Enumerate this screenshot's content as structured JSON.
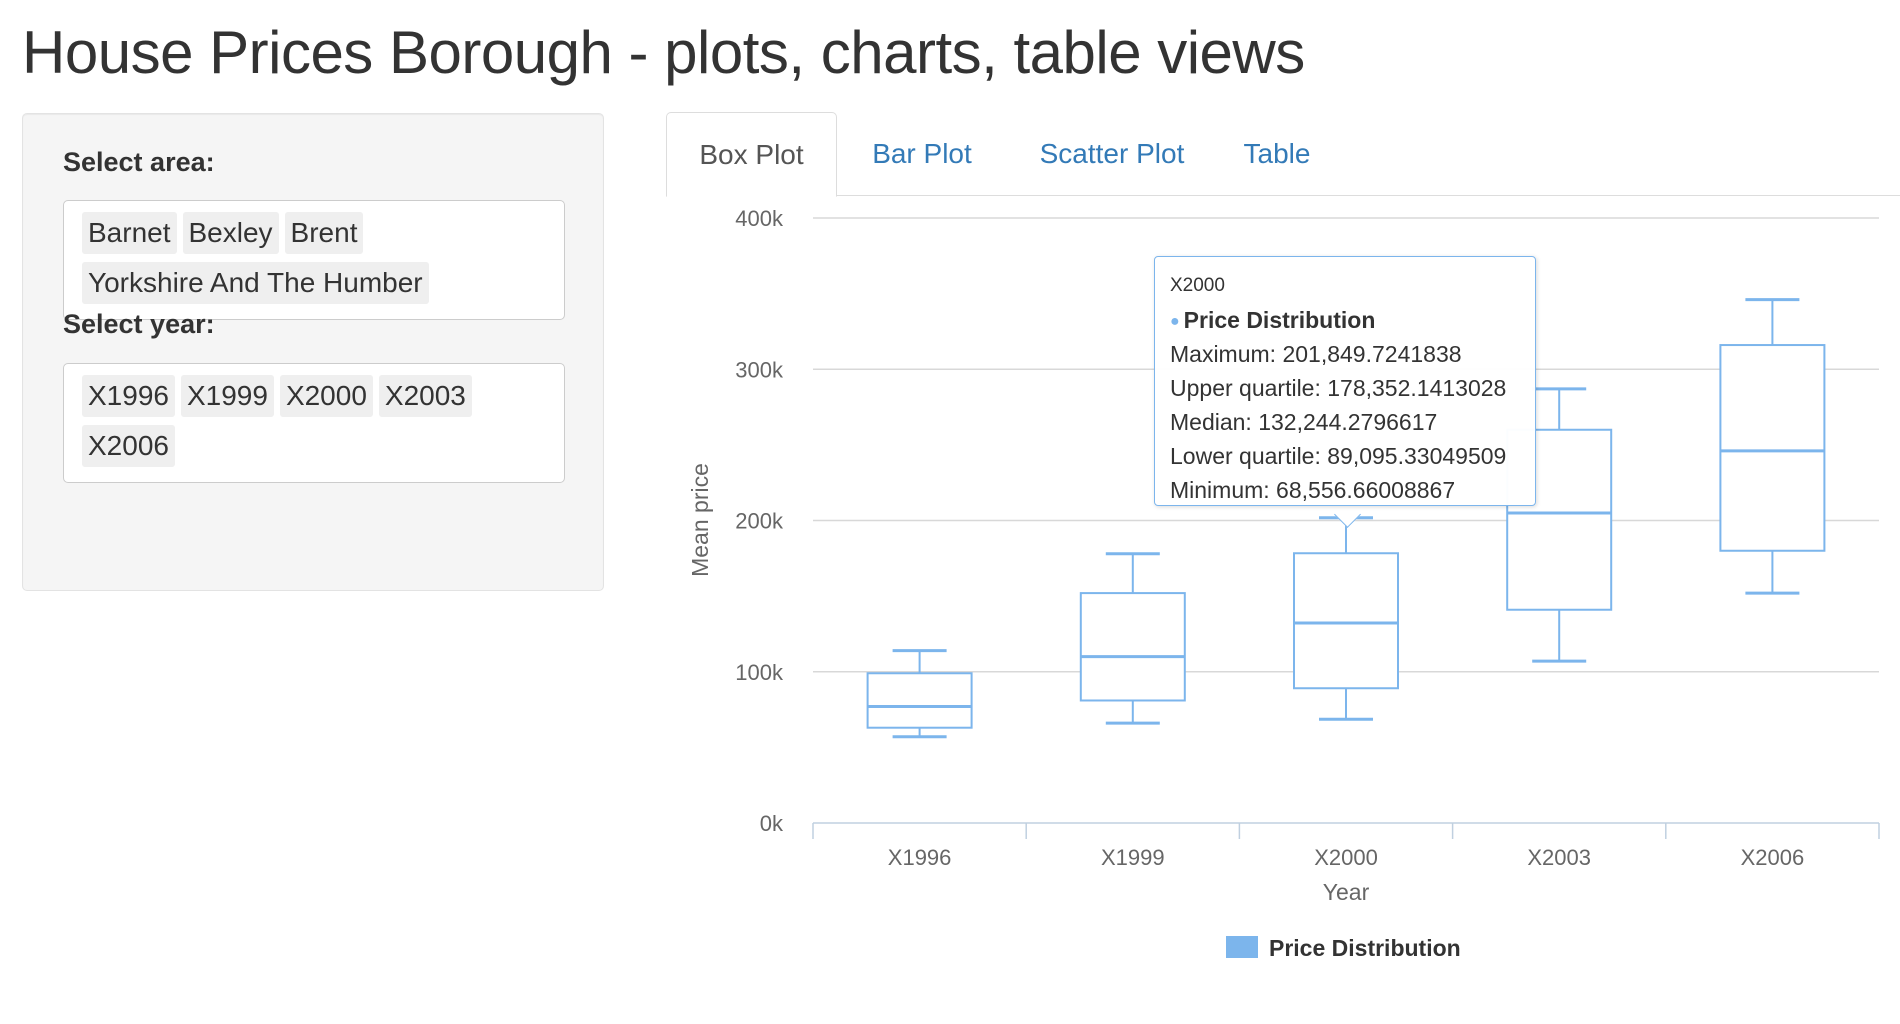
{
  "page": {
    "title": "House Prices Borough - plots, charts, table views"
  },
  "sidebar": {
    "area_label": "Select area:",
    "areas": [
      "Barnet",
      "Bexley",
      "Brent",
      "Yorkshire And The Humber"
    ],
    "year_label": "Select year:",
    "years": [
      "X1996",
      "X1999",
      "X2000",
      "X2003",
      "X2006"
    ]
  },
  "tabs": [
    {
      "label": "Box Plot",
      "active": true
    },
    {
      "label": "Bar Plot",
      "active": false
    },
    {
      "label": "Scatter Plot",
      "active": false
    },
    {
      "label": "Table",
      "active": false
    }
  ],
  "tooltip": {
    "category": "X2000",
    "series": "Price Distribution",
    "maximum": "Maximum: 201,849.7241838",
    "upper_quartile": "Upper quartile: 178,352.1413028",
    "median": "Median: 132,244.2796617",
    "lower_quartile": "Lower quartile: 89,095.33049509",
    "minimum": "Minimum: 68,556.66008867"
  },
  "chart_data": {
    "type": "box",
    "title": "",
    "xlabel": "Year",
    "ylabel": "Mean price",
    "ylim": [
      0,
      400000
    ],
    "yticks": [
      0,
      100000,
      200000,
      300000,
      400000
    ],
    "ytick_labels": [
      "0k",
      "100k",
      "200k",
      "300k",
      "400k"
    ],
    "grid": true,
    "legend_position": "bottom-center",
    "color": "#7cb5ec",
    "categories": [
      "X1996",
      "X1999",
      "X2000",
      "X2003",
      "X2006"
    ],
    "series": [
      {
        "name": "Price Distribution",
        "boxes": [
          {
            "min": 57000,
            "q1": 63000,
            "median": 77000,
            "q3": 99000,
            "max": 114000
          },
          {
            "min": 66000,
            "q1": 81000,
            "median": 110000,
            "q3": 152000,
            "max": 178000
          },
          {
            "min": 68556.66008867,
            "q1": 89095.33049509,
            "median": 132244.2796617,
            "q3": 178352.1413028,
            "max": 201849.7241838
          },
          {
            "min": 107000,
            "q1": 141000,
            "median": 205000,
            "q3": 260000,
            "max": 287000
          },
          {
            "min": 152000,
            "q1": 180000,
            "median": 246000,
            "q3": 316000,
            "max": 346000
          }
        ]
      }
    ]
  }
}
